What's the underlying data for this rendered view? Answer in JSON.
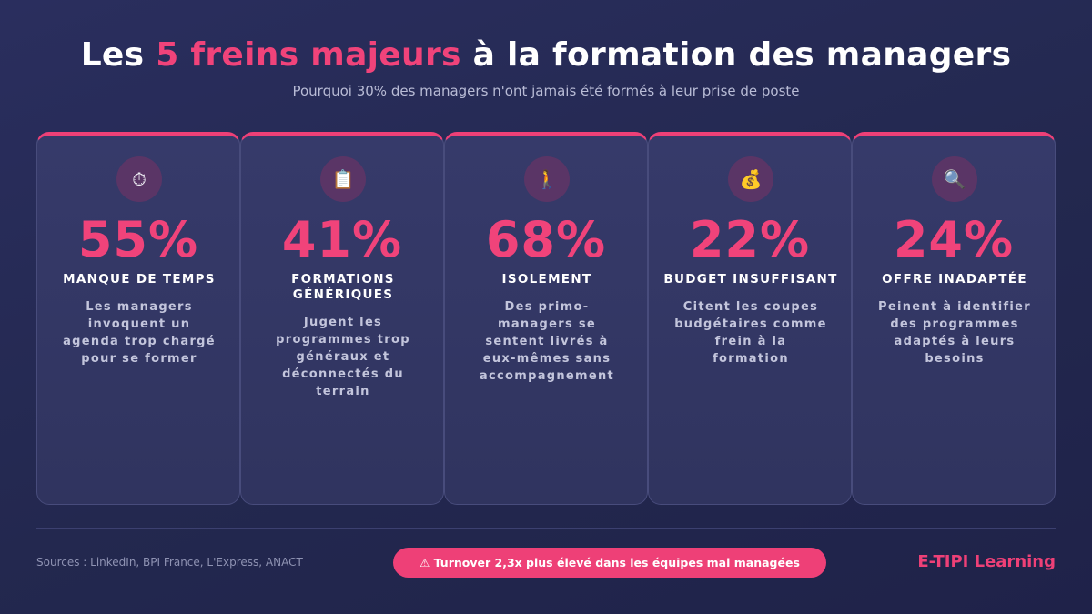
{
  "header": {
    "title_prefix": "Les ",
    "title_accent": "5 freins majeurs",
    "title_suffix": " à la formation des managers",
    "subtitle": "Pourquoi 30% des managers n'ont jamais été formés à leur prise de poste"
  },
  "cards": [
    {
      "icon": "stopwatch-icon",
      "glyph": "⏱",
      "percent": "55%",
      "label": "MANQUE DE TEMPS",
      "description": "Les managers invoquent un agenda trop chargé pour se former"
    },
    {
      "icon": "clipboard-icon",
      "glyph": "📋",
      "percent": "41%",
      "label": "FORMATIONS GÉNÉRIQUES",
      "description": "Jugent les programmes trop généraux et déconnectés du terrain"
    },
    {
      "icon": "walking-person-icon",
      "glyph": "🚶",
      "percent": "68%",
      "label": "ISOLEMENT",
      "description": "Des primo-managers se sentent livrés à eux-mêmes sans accompagnement"
    },
    {
      "icon": "money-bag-icon",
      "glyph": "💰",
      "percent": "22%",
      "label": "BUDGET INSUFFISANT",
      "description": "Citent les coupes budgétaires comme frein à la formation"
    },
    {
      "icon": "magnifier-icon",
      "glyph": "🔍",
      "percent": "24%",
      "label": "OFFRE INADAPTÉE",
      "description": "Peinent à identifier des programmes adaptés à leurs besoins"
    }
  ],
  "footer": {
    "sources": "Sources : LinkedIn, BPI France, L'Express, ANACT",
    "alert": "⚠ Turnover 2,3x plus élevé dans les équipes mal managées",
    "brand": "E-TIPI Learning"
  },
  "colors": {
    "accent": "#ee4077",
    "background": "#23284f",
    "card": "#33376a"
  }
}
